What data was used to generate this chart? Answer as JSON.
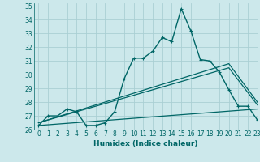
{
  "xlabel": "Humidex (Indice chaleur)",
  "xlim": [
    -0.5,
    23
  ],
  "ylim": [
    26,
    35.2
  ],
  "yticks": [
    26,
    27,
    28,
    29,
    30,
    31,
    32,
    33,
    34,
    35
  ],
  "xticks": [
    0,
    1,
    2,
    3,
    4,
    5,
    6,
    7,
    8,
    9,
    10,
    11,
    12,
    13,
    14,
    15,
    16,
    17,
    18,
    19,
    20,
    21,
    22,
    23
  ],
  "bg_color": "#cce8eb",
  "grid_color": "#aacfd4",
  "line_color": "#006666",
  "series1_x": [
    0,
    1,
    2,
    3,
    4,
    5,
    6,
    7,
    8,
    9,
    10,
    11,
    12,
    13,
    14,
    15,
    16,
    17,
    18,
    19,
    20,
    21,
    22,
    23
  ],
  "series1_y": [
    26.3,
    27.0,
    27.0,
    27.5,
    27.3,
    26.3,
    26.3,
    26.5,
    27.3,
    29.7,
    31.2,
    31.2,
    31.7,
    32.7,
    32.4,
    34.8,
    33.2,
    31.1,
    31.0,
    30.2,
    28.9,
    27.7,
    27.7,
    26.7
  ],
  "series2_x": [
    0,
    23
  ],
  "series2_y": [
    26.3,
    27.5
  ],
  "series3_x": [
    0,
    20,
    23
  ],
  "series3_y": [
    26.5,
    30.5,
    27.8
  ],
  "series4_x": [
    0,
    20,
    23
  ],
  "series4_y": [
    26.5,
    30.8,
    28.0
  ]
}
